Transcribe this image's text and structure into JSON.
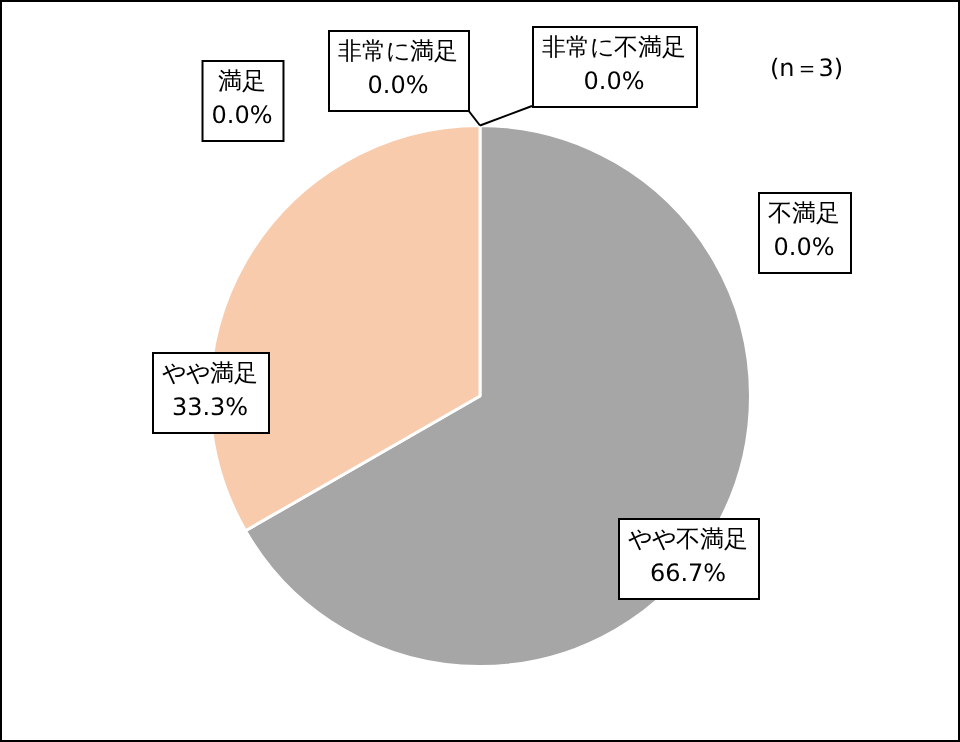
{
  "chart_data": {
    "type": "pie",
    "categories": [
      "非常に不満足",
      "不満足",
      "やや不満足",
      "やや満足",
      "満足",
      "非常に満足"
    ],
    "values": [
      0,
      0,
      66.7,
      33.3,
      0,
      0
    ],
    "colors": [
      "#7f7f7f",
      "#bfbfbf",
      "#a6a6a6",
      "#f8cbad",
      "#f4b183",
      "#c55a11"
    ],
    "value_labels": [
      "0.0%",
      "0.0%",
      "66.7%",
      "33.3%",
      "0.0%",
      "0.0%"
    ],
    "annotations": [
      "(n＝3)"
    ],
    "legend": false
  }
}
